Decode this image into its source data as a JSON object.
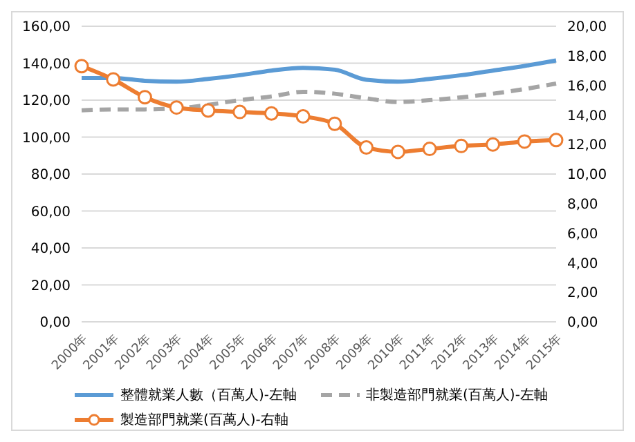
{
  "chart_data": {
    "type": "line",
    "categories": [
      "2000年",
      "2001年",
      "2002年",
      "2003年",
      "2004年",
      "2005年",
      "2006年",
      "2007年",
      "2008年",
      "2009年",
      "2010年",
      "2011年",
      "2012年",
      "2013年",
      "2014年",
      "2015年"
    ],
    "series": [
      {
        "name": "整體就業人數（百萬人)-左軸",
        "color": "#5b9bd5",
        "line_style": "solid",
        "marker": "none",
        "values": [
          132,
          132,
          130.5,
          130,
          131.5,
          133.5,
          136,
          137.5,
          136.5,
          131,
          130,
          131.5,
          133.5,
          136,
          138.5,
          141.5
        ]
      },
      {
        "name": "非製造部門就業(百萬人)-左軸",
        "color": "#a5a5a5",
        "line_style": "dashed",
        "marker": "none",
        "values": [
          114.5,
          115,
          115,
          115.5,
          117.5,
          120,
          122,
          124.5,
          123.5,
          121,
          119,
          120,
          121.5,
          123.5,
          126,
          129
        ]
      },
      {
        "name": "製造部門就業(百萬人)-右軸",
        "color": "#ed7d31",
        "line_style": "solid",
        "marker": "circle",
        "axis": "y2",
        "values": [
          17.3,
          16.4,
          15.2,
          14.5,
          14.3,
          14.2,
          14.1,
          13.9,
          13.4,
          11.8,
          11.5,
          11.7,
          11.9,
          12.0,
          12.2,
          12.3
        ]
      }
    ],
    "ylim": [
      0,
      160
    ],
    "yticks": [
      {
        "value": 0,
        "label": "0,00"
      },
      {
        "value": 20,
        "label": "20,00"
      },
      {
        "value": 40,
        "label": "40,00"
      },
      {
        "value": 60,
        "label": "60,00"
      },
      {
        "value": 80,
        "label": "80,00"
      },
      {
        "value": 100,
        "label": "100,00"
      },
      {
        "value": 120,
        "label": "120,00"
      },
      {
        "value": 140,
        "label": "140,00"
      },
      {
        "value": 160,
        "label": "160,00"
      }
    ],
    "y2lim": [
      0,
      20
    ],
    "y2ticks": [
      {
        "value": 0,
        "label": "0,00"
      },
      {
        "value": 2,
        "label": "2,00"
      },
      {
        "value": 4,
        "label": "4,00"
      },
      {
        "value": 6,
        "label": "6,00"
      },
      {
        "value": 8,
        "label": "8,00"
      },
      {
        "value": 10,
        "label": "10,00"
      },
      {
        "value": 12,
        "label": "12,00"
      },
      {
        "value": 14,
        "label": "14,00"
      },
      {
        "value": 16,
        "label": "16,00"
      },
      {
        "value": 18,
        "label": "18,00"
      },
      {
        "value": 20,
        "label": "20,00"
      }
    ],
    "grid": "y",
    "legend": "bottom"
  }
}
